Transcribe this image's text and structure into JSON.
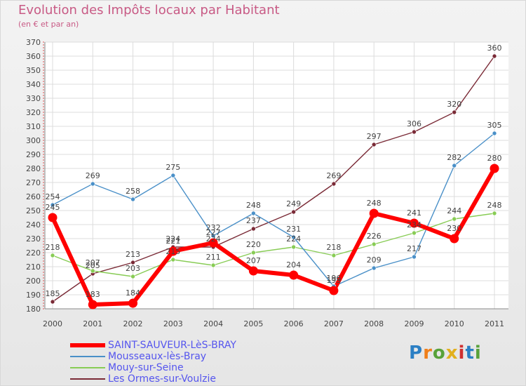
{
  "chart_data": {
    "type": "line",
    "title": "Evolution des Impôts locaux par Habitant",
    "subtitle": "(en € et par an)",
    "xlabel": "",
    "ylabel": "",
    "categories": [
      "2000",
      "2001",
      "2002",
      "2003",
      "2004",
      "2005",
      "2006",
      "2007",
      "2008",
      "2009",
      "2010",
      "2011"
    ],
    "ylim": [
      180,
      370
    ],
    "yticks": [
      180,
      190,
      200,
      210,
      220,
      230,
      240,
      250,
      260,
      270,
      280,
      290,
      300,
      310,
      320,
      330,
      340,
      350,
      360,
      370
    ],
    "grid": true,
    "legend_position": "bottom-left",
    "series": [
      {
        "name": "SAINT-SAUVEUR-LèS-BRAY",
        "color": "#ff0000",
        "values": [
          245,
          183,
          184,
          221,
          227,
          207,
          204,
          193,
          248,
          241,
          230,
          280
        ]
      },
      {
        "name": "Mousseaux-lès-Bray",
        "color": "#4a90c8",
        "values": [
          254,
          269,
          258,
          275,
          232,
          248,
          231,
          196,
          209,
          217,
          282,
          305
        ]
      },
      {
        "name": "Mouy-sur-Seine",
        "color": "#88cc55",
        "values": [
          218,
          207,
          203,
          215,
          211,
          220,
          224,
          218,
          226,
          234,
          244,
          248
        ]
      },
      {
        "name": "Les Ormes-sur-Voulzie",
        "color": "#7a2a36",
        "values": [
          185,
          205,
          213,
          224,
          224,
          237,
          249,
          269,
          297,
          306,
          320,
          360
        ]
      }
    ]
  },
  "brand": {
    "letters": [
      "P",
      "r",
      "o",
      "x",
      "i",
      "t",
      "i"
    ]
  }
}
